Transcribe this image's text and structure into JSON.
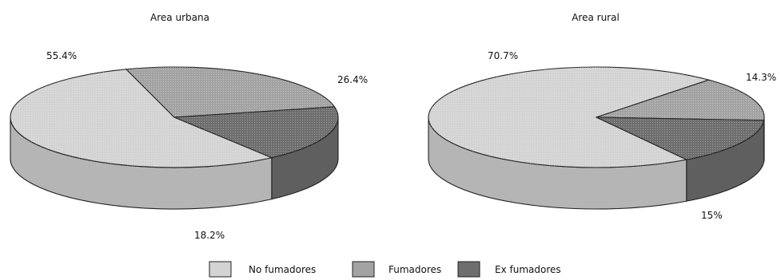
{
  "chart_data": [
    {
      "type": "pie",
      "title": "Area urbana",
      "categories": [
        "No fumadores",
        "Fumadores",
        "Ex fumadores"
      ],
      "values": [
        55.4,
        26.4,
        18.2
      ],
      "labels": [
        "55.4%",
        "26.4%",
        "18.2%"
      ],
      "style": "3d"
    },
    {
      "type": "pie",
      "title": "Area rural",
      "categories": [
        "No fumadores",
        "Fumadores",
        "Ex fumadores"
      ],
      "values": [
        70.7,
        14.3,
        15
      ],
      "labels": [
        "70.7%",
        "14.3%",
        "15%"
      ],
      "style": "3d"
    }
  ],
  "legend": {
    "items": [
      "No fumadores",
      "Fumadores",
      "Ex fumadores"
    ],
    "placement": "bottom"
  },
  "colors": {
    "No fumadores": "#d3d3d3",
    "Fumadores": "#a3a3a3",
    "Ex fumadores": "#6e6e6e"
  }
}
